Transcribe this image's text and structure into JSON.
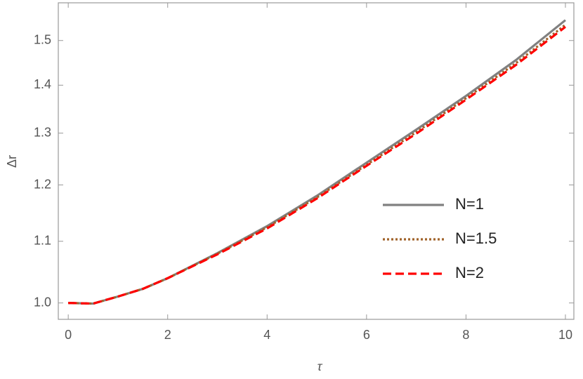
{
  "chart_data": {
    "type": "line",
    "x_label": "τ",
    "y_label": "Δr",
    "x": [
      0,
      0.5,
      1,
      1.5,
      2,
      3,
      4,
      5,
      6,
      7,
      8,
      9,
      10
    ],
    "series": [
      {
        "name": "N=1",
        "color": "#808080",
        "style": "solid",
        "values": [
          1.0,
          0.999,
          1.01,
          1.022,
          1.039,
          1.08,
          1.126,
          1.18,
          1.242,
          1.307,
          1.377,
          1.455,
          1.548
        ]
      },
      {
        "name": "N=1.5",
        "color": "#a0632a",
        "style": "dotted",
        "values": [
          1.0,
          0.999,
          1.01,
          1.022,
          1.039,
          1.079,
          1.124,
          1.177,
          1.238,
          1.302,
          1.372,
          1.448,
          1.537
        ]
      },
      {
        "name": "N=2",
        "color": "#ff0000",
        "style": "dashed",
        "values": [
          1.0,
          0.999,
          1.01,
          1.022,
          1.039,
          1.078,
          1.122,
          1.175,
          1.236,
          1.299,
          1.369,
          1.444,
          1.532
        ]
      }
    ],
    "xlim": [
      -0.2,
      10.17
    ],
    "ylim": [
      0.975,
      1.59
    ],
    "xticks": [
      0,
      2,
      4,
      6,
      8,
      10
    ],
    "yticks": [
      {
        "value": 1,
        "label": "1.0"
      },
      1.1,
      1.2,
      1.3,
      1.4,
      1.5
    ],
    "y_scale": "log",
    "grid": false,
    "legend": "right"
  }
}
